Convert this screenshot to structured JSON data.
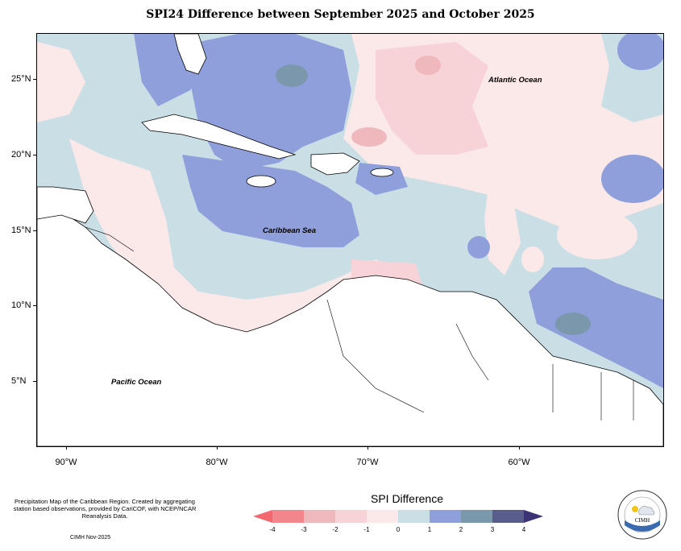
{
  "title": "SPI24 Difference between September 2025 and October 2025",
  "map": {
    "lat_labels": [
      "25°N",
      "20°N",
      "15°N",
      "10°N",
      "5°N"
    ],
    "lon_labels": [
      "90°W",
      "80°W",
      "70°W",
      "60°W"
    ],
    "regions": {
      "atlantic": "Atlantic Ocean",
      "caribbean": "Caribbean Sea",
      "pacific": "Pacific Ocean"
    }
  },
  "legend": {
    "title": "SPI Difference",
    "tick_labels": [
      "-4",
      "-3",
      "-2",
      "-1",
      "0",
      "1",
      "2",
      "3",
      "4"
    ],
    "colors": [
      "#f3868c",
      "#eeb8bd",
      "#f7d3d8",
      "#fbe9ea",
      "#c9dfe5",
      "#8f9fdb",
      "#7b97ac",
      "#585d8c"
    ],
    "under_color": "#f36870",
    "over_color": "#3c3377"
  },
  "credits": {
    "text": "Precipitation Map of the Caribbean Region. Created by aggregating station based observations, provided by CariCOF, with NCEP/NCAR Reanalysis Data.",
    "date": "CIMH Nov-2025"
  },
  "logo": {
    "text": "CIMH"
  }
}
